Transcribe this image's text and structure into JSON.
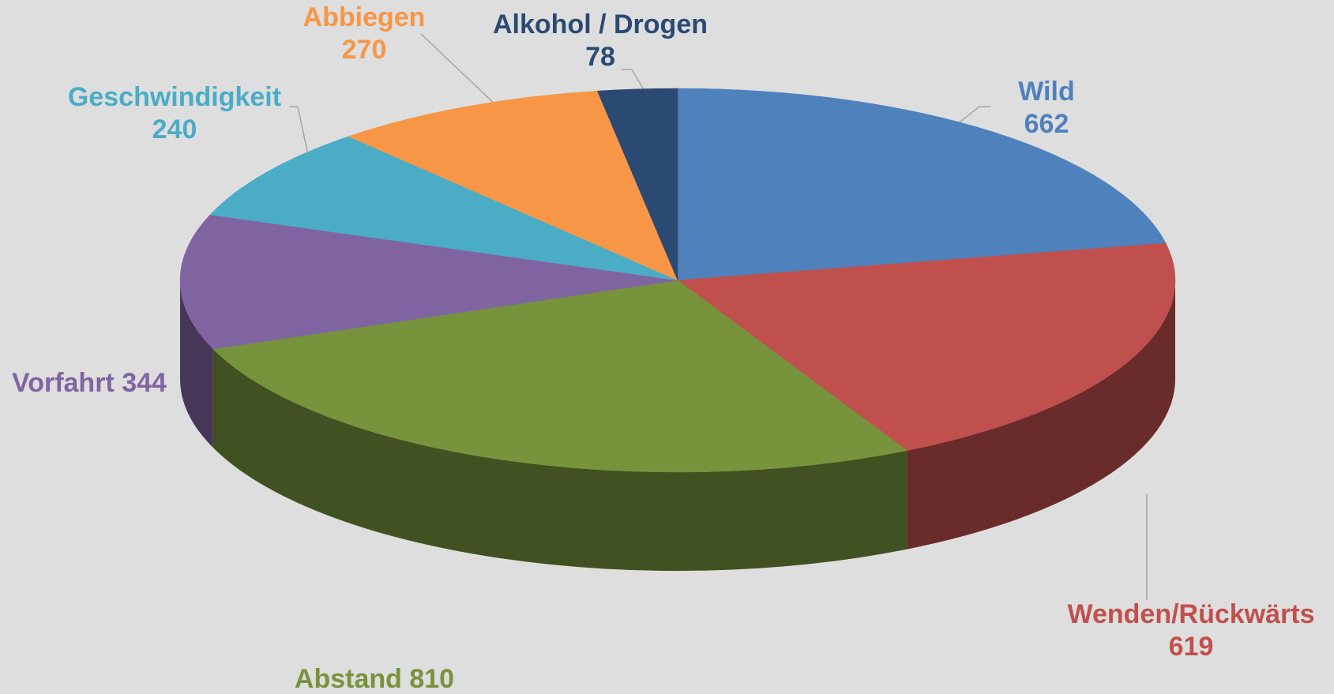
{
  "chart_data": {
    "type": "pie",
    "categories": [
      "Wild",
      "Wenden/Rückwärts",
      "Abstand",
      "Vorfahrt",
      "Geschwindigkeit",
      "Abbiegen",
      "Alkohol / Drogen"
    ],
    "values": [
      662,
      619,
      810,
      344,
      240,
      270,
      78
    ],
    "colors": [
      "#4f81bd",
      "#c0504d",
      "#77933c",
      "#8064a2",
      "#4bacc6",
      "#f79646",
      "#2a4a73"
    ]
  }
}
